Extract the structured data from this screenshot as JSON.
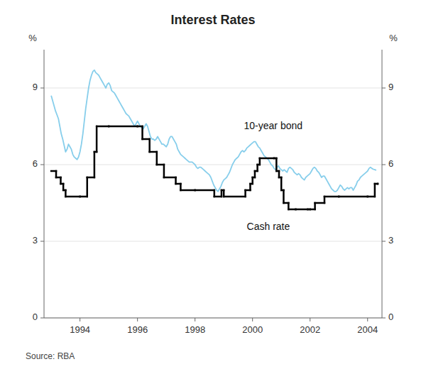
{
  "chart_data": {
    "type": "line",
    "title": "Interest Rates",
    "source": "Source: RBA",
    "ylabel": "%",
    "y2label": "%",
    "xlim": [
      1992.75,
      2004.5
    ],
    "xticks": [
      1994,
      1996,
      1998,
      2000,
      2002,
      2004
    ],
    "ylim": [
      0,
      10.5
    ],
    "yticks": [
      0,
      3,
      6,
      9
    ],
    "y2lim": [
      0,
      10.5
    ],
    "y2ticks": [
      0,
      3,
      6,
      9
    ],
    "grid": true,
    "series": [
      {
        "color": "#87CEEB",
        "x": [
          1993,
          1993.05,
          1993.1,
          1993.15,
          1993.2,
          1993.25,
          1993.3,
          1993.35,
          1993.4,
          1993.45,
          1993.5,
          1993.55,
          1993.6,
          1993.65,
          1993.7,
          1993.75,
          1993.8,
          1993.85,
          1993.9,
          1993.95,
          1994,
          1994.05,
          1994.1,
          1994.15,
          1994.2,
          1994.25,
          1994.3,
          1994.35,
          1994.4,
          1994.45,
          1994.5,
          1994.55,
          1994.6,
          1994.65,
          1994.7,
          1994.75,
          1994.8,
          1994.85,
          1994.9,
          1994.95,
          1995,
          1995.05,
          1995.1,
          1995.15,
          1995.2,
          1995.25,
          1995.3,
          1995.35,
          1995.4,
          1995.45,
          1995.5,
          1995.55,
          1995.6,
          1995.65,
          1995.7,
          1995.75,
          1995.8,
          1995.85,
          1995.9,
          1995.95,
          1996,
          1996.05,
          1996.1,
          1996.15,
          1996.2,
          1996.25,
          1996.3,
          1996.35,
          1996.4,
          1996.45,
          1996.5,
          1996.55,
          1996.6,
          1996.65,
          1996.7,
          1996.75,
          1996.8,
          1996.85,
          1996.9,
          1996.95,
          1997,
          1997.05,
          1997.1,
          1997.15,
          1997.2,
          1997.25,
          1997.3,
          1997.35,
          1997.4,
          1997.45,
          1997.5,
          1997.55,
          1997.6,
          1997.65,
          1997.7,
          1997.75,
          1997.8,
          1997.85,
          1997.9,
          1997.95,
          1998,
          1998.05,
          1998.1,
          1998.15,
          1998.2,
          1998.25,
          1998.3,
          1998.35,
          1998.4,
          1998.45,
          1998.5,
          1998.55,
          1998.6,
          1998.65,
          1998.7,
          1998.75,
          1998.8,
          1998.85,
          1998.9,
          1998.95,
          1999,
          1999.05,
          1999.1,
          1999.15,
          1999.2,
          1999.25,
          1999.3,
          1999.35,
          1999.4,
          1999.45,
          1999.5,
          1999.55,
          1999.6,
          1999.65,
          1999.7,
          1999.75,
          1999.8,
          1999.85,
          1999.9,
          1999.95,
          2000,
          2000.05,
          2000.1,
          2000.15,
          2000.2,
          2000.25,
          2000.3,
          2000.35,
          2000.4,
          2000.45,
          2000.5,
          2000.55,
          2000.6,
          2000.65,
          2000.7,
          2000.75,
          2000.8,
          2000.85,
          2000.9,
          2000.95,
          2001,
          2001.05,
          2001.1,
          2001.15,
          2001.2,
          2001.25,
          2001.3,
          2001.35,
          2001.4,
          2001.45,
          2001.5,
          2001.55,
          2001.6,
          2001.65,
          2001.7,
          2001.75,
          2001.8,
          2001.85,
          2001.9,
          2001.95,
          2002,
          2002.05,
          2002.1,
          2002.15,
          2002.2,
          2002.25,
          2002.3,
          2002.35,
          2002.4,
          2002.45,
          2002.5,
          2002.55,
          2002.6,
          2002.65,
          2002.7,
          2002.75,
          2002.8,
          2002.85,
          2002.9,
          2002.95,
          2003,
          2003.05,
          2003.1,
          2003.15,
          2003.2,
          2003.25,
          2003.3,
          2003.35,
          2003.4,
          2003.45,
          2003.5,
          2003.55,
          2003.6,
          2003.65,
          2003.7,
          2003.75,
          2003.8,
          2003.85,
          2003.9,
          2003.95,
          2004,
          2004.05,
          2004.1,
          2004.15,
          2004.2,
          2004.25,
          2004.3
        ],
        "values": [
          8.7,
          8.5,
          8.3,
          8.1,
          7.95,
          7.8,
          7.5,
          7.2,
          7.0,
          6.75,
          6.5,
          6.6,
          6.8,
          6.7,
          6.6,
          6.4,
          6.3,
          6.25,
          6.2,
          6.3,
          6.5,
          6.8,
          7.2,
          7.7,
          8.2,
          8.6,
          9.0,
          9.3,
          9.5,
          9.65,
          9.7,
          9.6,
          9.55,
          9.5,
          9.4,
          9.3,
          9.2,
          9.1,
          9.0,
          9.15,
          9.2,
          9.1,
          8.9,
          8.85,
          8.8,
          8.7,
          8.6,
          8.5,
          8.4,
          8.3,
          8.2,
          8.1,
          8.0,
          7.95,
          7.9,
          7.8,
          7.7,
          7.6,
          7.5,
          7.6,
          7.7,
          7.6,
          7.5,
          7.45,
          7.4,
          7.5,
          7.6,
          7.5,
          7.3,
          7.1,
          7.0,
          7.0,
          6.95,
          7.0,
          7.1,
          7.0,
          6.9,
          6.8,
          6.8,
          6.75,
          6.7,
          6.8,
          7.0,
          7.1,
          7.1,
          7.0,
          6.9,
          6.8,
          6.6,
          6.5,
          6.4,
          6.35,
          6.3,
          6.25,
          6.2,
          6.15,
          6.1,
          6.1,
          6.1,
          6.05,
          6.0,
          5.9,
          5.85,
          5.9,
          5.9,
          5.85,
          5.8,
          5.75,
          5.7,
          5.65,
          5.6,
          5.5,
          5.35,
          5.2,
          5.1,
          5.0,
          4.95,
          5.05,
          5.15,
          5.3,
          5.4,
          5.45,
          5.5,
          5.6,
          5.7,
          5.85,
          6.0,
          6.1,
          6.2,
          6.25,
          6.3,
          6.4,
          6.5,
          6.55,
          6.5,
          6.55,
          6.65,
          6.7,
          6.75,
          6.8,
          6.85,
          6.9,
          6.9,
          6.8,
          6.7,
          6.65,
          6.55,
          6.45,
          6.35,
          6.3,
          6.25,
          6.2,
          6.1,
          6.0,
          5.95,
          5.85,
          5.8,
          5.9,
          5.95,
          5.85,
          5.8,
          5.75,
          5.8,
          5.75,
          5.7,
          5.85,
          5.9,
          5.85,
          5.8,
          5.7,
          5.65,
          5.6,
          5.65,
          5.6,
          5.5,
          5.45,
          5.4,
          5.5,
          5.55,
          5.6,
          5.65,
          5.75,
          5.85,
          5.9,
          5.85,
          5.75,
          5.7,
          5.6,
          5.5,
          5.55,
          5.55,
          5.45,
          5.35,
          5.25,
          5.15,
          5.05,
          5.0,
          4.95,
          4.95,
          5.0,
          5.1,
          5.2,
          5.15,
          5.05,
          5.0,
          5.05,
          5.1,
          5.05,
          5.1,
          5.1,
          5.0,
          5.1,
          5.2,
          5.35,
          5.4,
          5.5,
          5.55,
          5.6,
          5.65,
          5.7,
          5.75,
          5.85,
          5.9,
          5.85,
          5.82,
          5.8,
          5.78
        ]
      },
      {
        "type": "step",
        "color": "#000000",
        "x": [
          1993.0,
          1993.17,
          1993.33,
          1993.42,
          1993.5,
          1994.0,
          1994.25,
          1994.5,
          1994.58,
          1995.0,
          1996.0,
          1996.17,
          1996.42,
          1996.67,
          1996.92,
          1997.33,
          1997.5,
          1998.0,
          1998.67,
          1998.92,
          1999.0,
          1999.75,
          1999.92,
          2000.0,
          2000.08,
          2000.17,
          2000.25,
          2000.75,
          2000.83,
          2000.92,
          2001.0,
          2001.08,
          2001.25,
          2001.5,
          2001.92,
          2002.0,
          2002.17,
          2002.5,
          2003.0,
          2004.0,
          2004.25,
          2004.35
        ],
        "values": [
          5.75,
          5.5,
          5.25,
          5.0,
          4.75,
          4.75,
          5.5,
          6.5,
          7.5,
          7.5,
          7.5,
          7.0,
          6.5,
          6.0,
          5.5,
          5.25,
          5.0,
          5.0,
          4.75,
          5.0,
          4.75,
          5.0,
          5.25,
          5.5,
          5.75,
          6.0,
          6.25,
          6.25,
          5.75,
          5.5,
          5.0,
          4.5,
          4.25,
          4.25,
          4.25,
          4.25,
          4.5,
          4.75,
          4.75,
          4.75,
          5.25,
          5.25
        ]
      }
    ],
    "annotations": [
      {
        "text": "10-year bond",
        "x": 1999.7,
        "y": 7.5
      },
      {
        "text": "Cash rate",
        "x": 1999.8,
        "y": 3.55
      }
    ]
  }
}
